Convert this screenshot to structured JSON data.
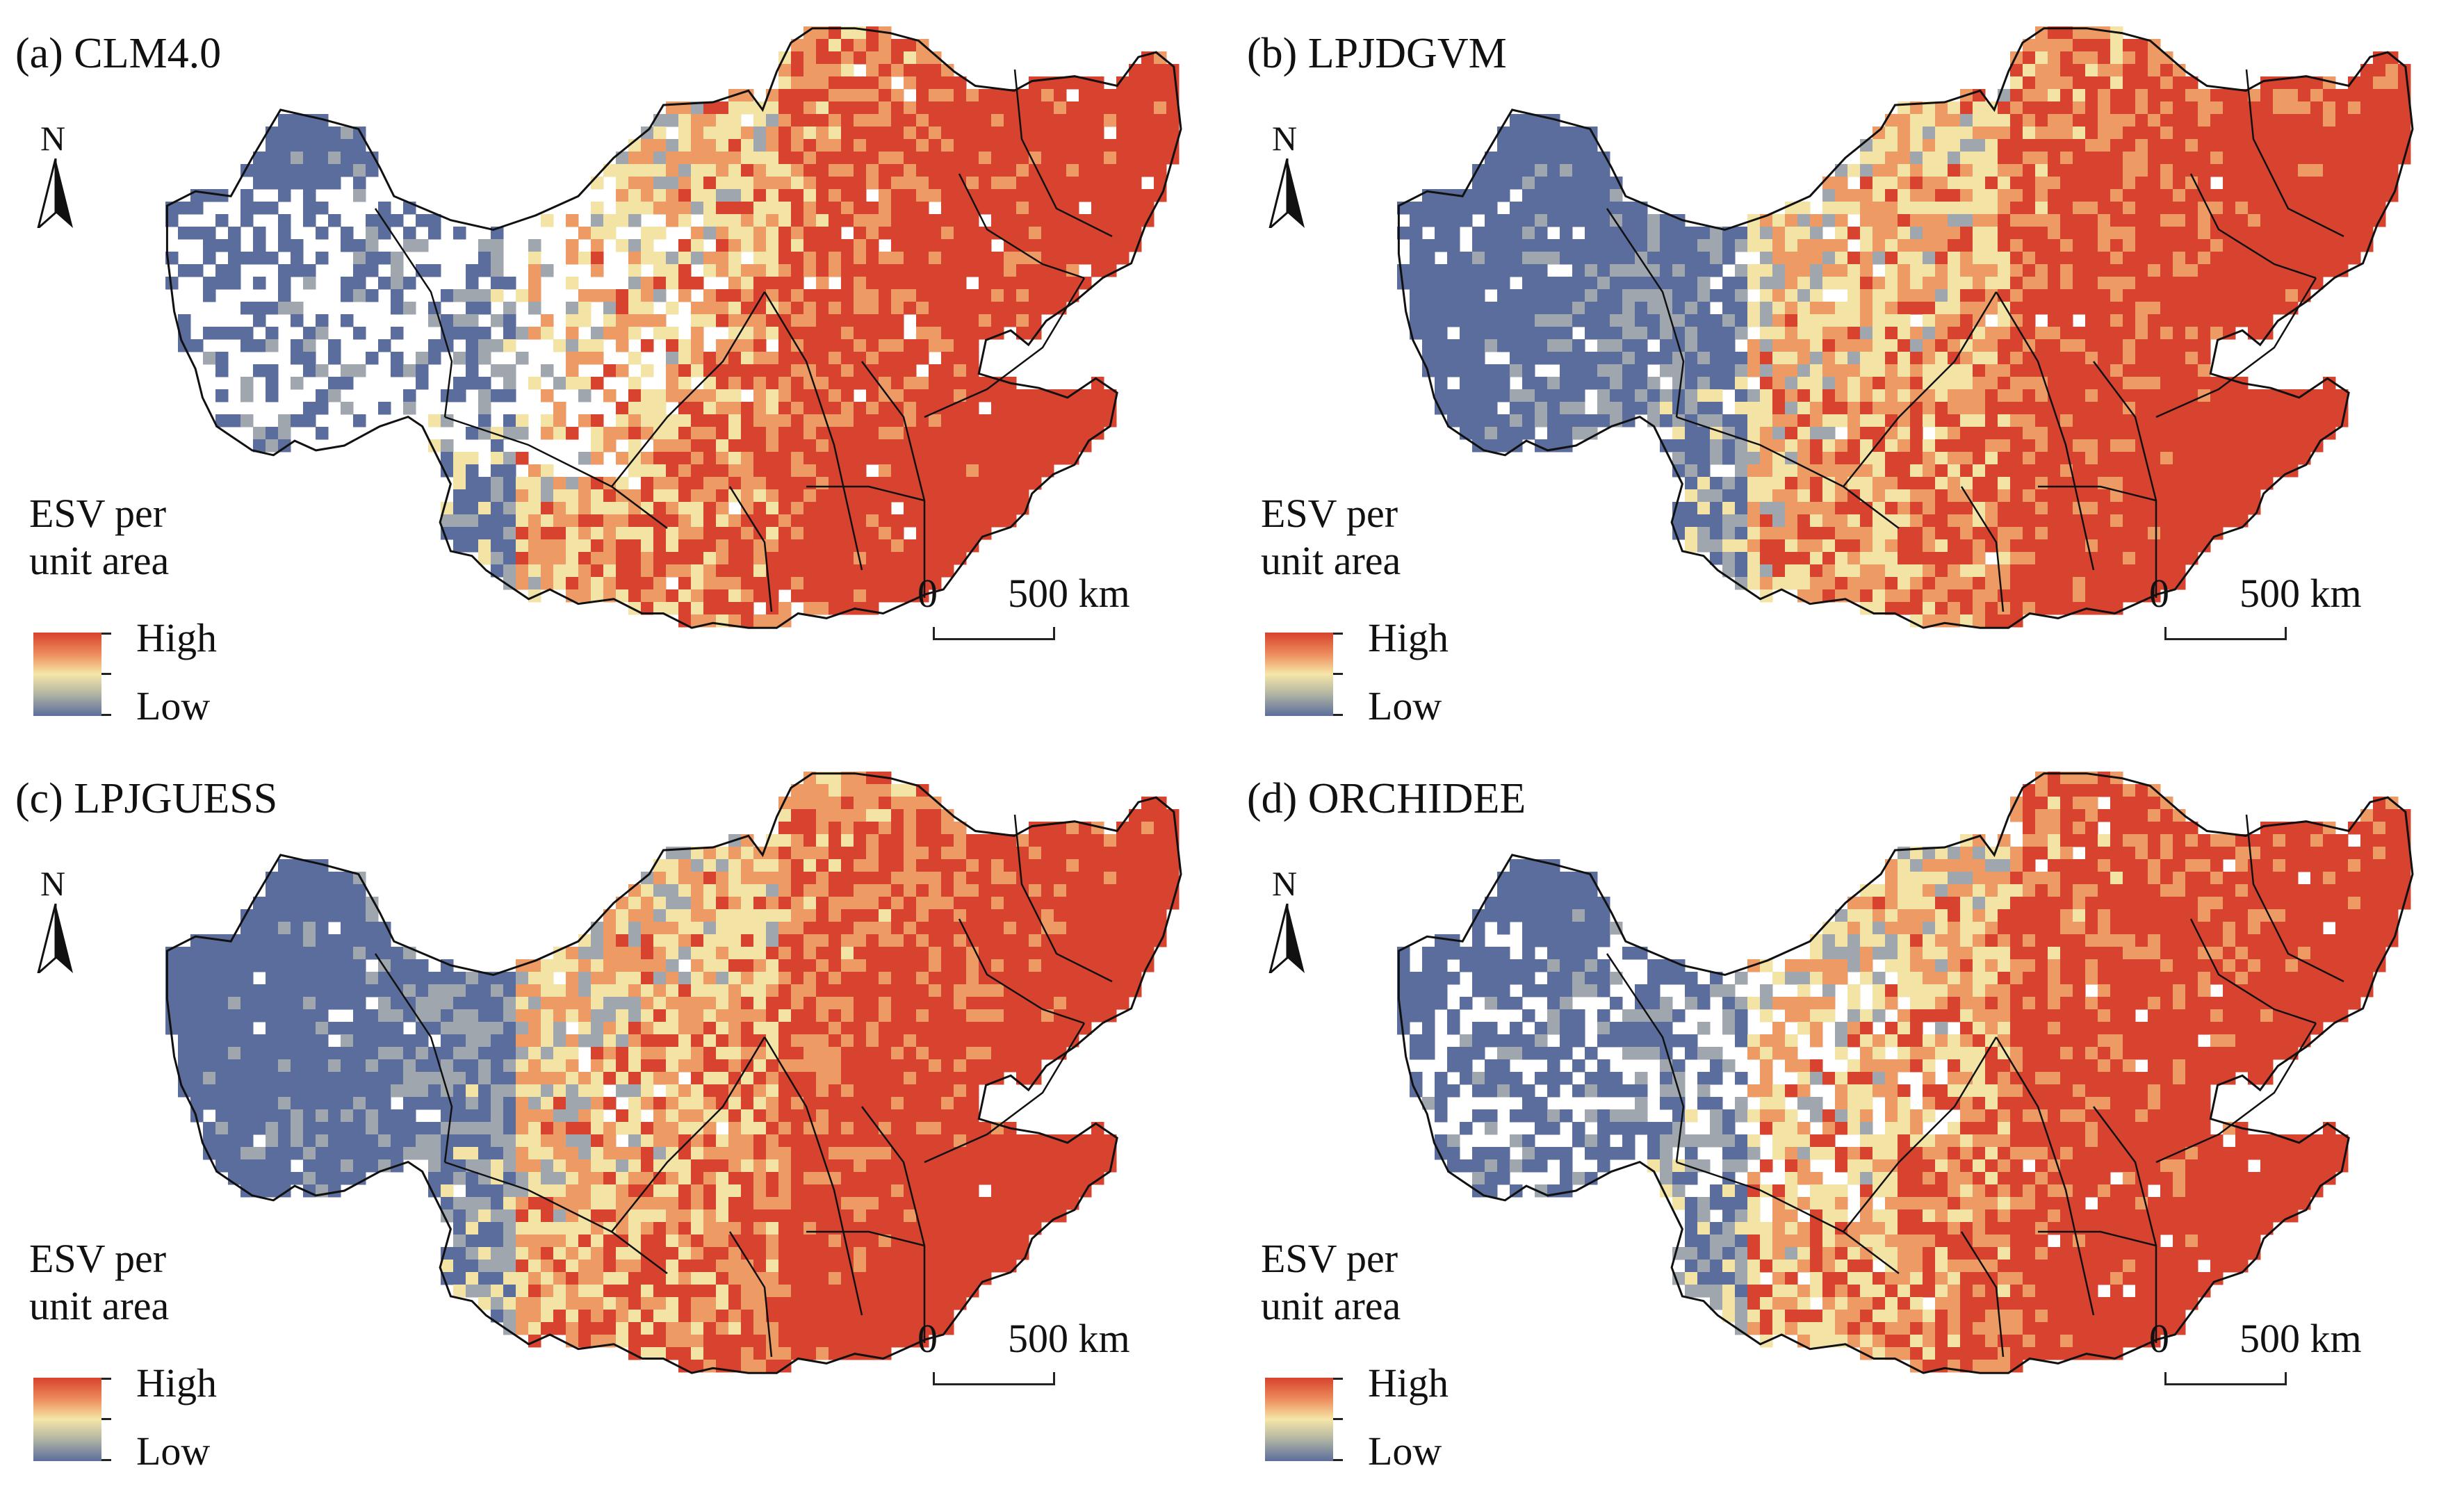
{
  "panels": [
    {
      "label": "(a) CLM4.0"
    },
    {
      "label": "(b) LPJDGVM"
    },
    {
      "label": "(c) LPJGUESS"
    },
    {
      "label": "(d) ORCHIDEE"
    }
  ],
  "north_arrow": {
    "letter": "N"
  },
  "legend": {
    "title_line1": "ESV per",
    "title_line2": "unit area",
    "high": "High",
    "low": "Low"
  },
  "scale_bar": {
    "zero": "0",
    "length": "500 km"
  },
  "colors": {
    "low": "#5b6d9c",
    "low_mid": "#9fa6ad",
    "mid": "#f3e4a6",
    "mid_high": "#ee9a64",
    "high": "#d7432e",
    "outline": "#111111",
    "nodata": "#ffffff"
  }
}
